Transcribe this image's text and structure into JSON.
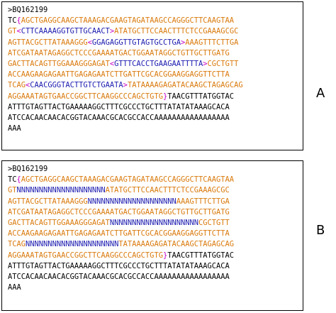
{
  "colors": {
    "black": "#000000",
    "orange": "#d9790b",
    "blue": "#1a1ab0",
    "magenta": "#c400c4"
  },
  "panels": [
    {
      "label": "A",
      "header": ">BQ162199",
      "lines": [
        [
          [
            "TC",
            "black"
          ],
          [
            "{",
            "magenta"
          ],
          [
            "AGCTGAGGCAAGCTAAAGACGAAGTAGATAAGCCAGGGCTTCAAGTAA",
            "orange"
          ]
        ],
        [
          [
            "GT",
            "orange"
          ],
          [
            "<",
            "magenta"
          ],
          [
            "CTTCAAAAGGTGTTGCAACT",
            "blue"
          ],
          [
            ">",
            "magenta"
          ],
          [
            "ATATGCTTCCAACTTTCTCCGAAAGCGC",
            "orange"
          ]
        ],
        [
          [
            "AGTTACGCTTATAAAGGG",
            "orange"
          ],
          [
            "<",
            "magenta"
          ],
          [
            "GGAGAGGTTGTAGTGCCTGA",
            "blue"
          ],
          [
            ">",
            "magenta"
          ],
          [
            "AAAGTTTCTTGA",
            "orange"
          ]
        ],
        [
          [
            "ATCGATAATAGAGGCTCCCGAAAATGACTGGAATAGGCTGTTGCTTGATG",
            "orange"
          ]
        ],
        [
          [
            "GACTTACAGTTGGAAAGGGAGAT",
            "orange"
          ],
          [
            "<",
            "magenta"
          ],
          [
            "GTTTCACCTGAAGAATTTTA",
            "blue"
          ],
          [
            ">",
            "magenta"
          ],
          [
            "CGCTGTT",
            "orange"
          ]
        ],
        [
          [
            "ACCAAGAAGAGAATTGAGAGAATCTTGATTCGCACGGAAGGAGGTTCTTA",
            "orange"
          ]
        ],
        [
          [
            "TCAG",
            "orange"
          ],
          [
            "<",
            "magenta"
          ],
          [
            "CAACGGGTACTTGTCTGAATA",
            "blue"
          ],
          [
            ">",
            "magenta"
          ],
          [
            "TATAAAAGAGATACAAGCTAGAGCAG",
            "orange"
          ]
        ],
        [
          [
            "AGGAAATAGTGAACCGGCTTCAAGGCCCAGCTGTG",
            "orange"
          ],
          [
            "}",
            "magenta"
          ],
          [
            "TAACGTTTATGGTAC",
            "black"
          ]
        ],
        [
          [
            "ATTTGTAGTTACTGAAAAAGGCTTTCGCCCTGCTTTATATATAAAGCACA",
            "black"
          ]
        ],
        [
          [
            "ATCCACAACAACACGGTACAAACGCACGCCACCAAAAAAAAAAAAAAAAA",
            "black"
          ]
        ],
        [
          [
            "AAA",
            "black"
          ]
        ]
      ]
    },
    {
      "label": "B",
      "header": ">BQ162199",
      "lines": [
        [
          [
            "TC",
            "black"
          ],
          [
            "{",
            "magenta"
          ],
          [
            "AGCTGAGGCAAGCTAAAGACGAAGTAGATAAGCCAGGGCTTCAAGTAA",
            "orange"
          ]
        ],
        [
          [
            "GT",
            "orange"
          ],
          [
            "NNNNNNNNNNNNNNNNNNNN",
            "blue"
          ],
          [
            "ATATGCTTCCAACTTTCTCCGAAAGCGC",
            "orange"
          ]
        ],
        [
          [
            "AGTTACGCTTATAAAGGG",
            "orange"
          ],
          [
            "NNNNNNNNNNNNNNNNNNNN",
            "blue"
          ],
          [
            "AAAGTTTCTTGA",
            "orange"
          ]
        ],
        [
          [
            "ATCGATAATAGAGGCTCCCGAAAATGACTGGAATAGGCTGTTGCTTGATG",
            "orange"
          ]
        ],
        [
          [
            "GACTTACAGTTGGAAAGGGAGAT",
            "orange"
          ],
          [
            "NNNNNNNNNNNNNNNNNNNN",
            "blue"
          ],
          [
            "CGCTGTT",
            "orange"
          ]
        ],
        [
          [
            "ACCAAGAAGAGAATTGAGAGAATCTTGATTCGCACGGAAGGAGGTTCTTA",
            "orange"
          ]
        ],
        [
          [
            "TCAG",
            "orange"
          ],
          [
            "NNNNNNNNNNNNNNNNNNNNN",
            "blue"
          ],
          [
            "TATAAAAGAGATACAAGCTAGAGCAG",
            "orange"
          ]
        ],
        [
          [
            "AGGAAATAGTGAACCGGCTTCAAGGCCCAGCTGTG",
            "orange"
          ],
          [
            "}",
            "magenta"
          ],
          [
            "TAACGTTTATGGTAC",
            "black"
          ]
        ],
        [
          [
            "ATTTGTAGTTACTGAAAAAGGCTTTCGCCCTGCTTTATATATAAAGCACA",
            "black"
          ]
        ],
        [
          [
            "ATCCACAACAACACGGTACAAACGCACGCCACCAAAAAAAAAAAAAAAAA",
            "black"
          ]
        ],
        [
          [
            "AAA",
            "black"
          ]
        ]
      ]
    }
  ]
}
